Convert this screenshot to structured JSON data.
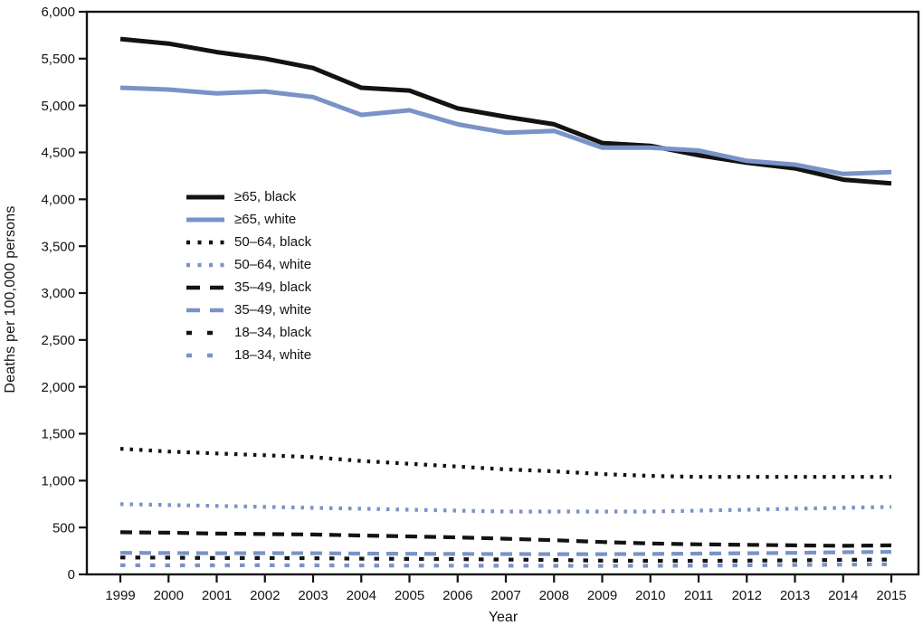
{
  "palette": {
    "black": "#131313",
    "blue": "#7a93c7",
    "frame": "#131313",
    "text": "#131313",
    "background": "#ffffff"
  },
  "chart_data": {
    "type": "line",
    "title": "",
    "xlabel": "Year",
    "ylabel": "Deaths per 100,000 persons",
    "x": [
      1999,
      2000,
      2001,
      2002,
      2003,
      2004,
      2005,
      2006,
      2007,
      2008,
      2009,
      2010,
      2011,
      2012,
      2013,
      2014,
      2015
    ],
    "xtick_labels": [
      "1999",
      "2000",
      "2001",
      "2002",
      "2003",
      "2004",
      "2005",
      "2006",
      "2007",
      "2008",
      "2009",
      "2010",
      "2011",
      "2012",
      "2013",
      "2014",
      "2015"
    ],
    "ylim": [
      0,
      6000
    ],
    "ytick_step": 500,
    "ytick_labels": [
      "0",
      "500",
      "1,000",
      "1,500",
      "2,000",
      "2,500",
      "3,000",
      "3,500",
      "4,000",
      "4,500",
      "5,000",
      "5,500",
      "6,000"
    ],
    "grid": false,
    "legend_position": "inside-upper-left",
    "series": [
      {
        "id": "ge65-black",
        "name": "≥65, black",
        "color": "black",
        "line_style": "solid",
        "values": [
          5710,
          5660,
          5570,
          5500,
          5400,
          5190,
          5160,
          4970,
          4880,
          4800,
          4600,
          4570,
          4470,
          4390,
          4330,
          4210,
          4170
        ]
      },
      {
        "id": "ge65-white",
        "name": "≥65, white",
        "color": "blue",
        "line_style": "solid",
        "values": [
          5190,
          5170,
          5130,
          5150,
          5090,
          4900,
          4950,
          4800,
          4710,
          4730,
          4550,
          4550,
          4520,
          4410,
          4370,
          4270,
          4290
        ]
      },
      {
        "id": "50-64-black",
        "name": "50–64, black",
        "color": "black",
        "line_style": "dotted",
        "values": [
          1340,
          1310,
          1290,
          1270,
          1250,
          1210,
          1180,
          1150,
          1120,
          1100,
          1070,
          1050,
          1040,
          1040,
          1040,
          1040,
          1040
        ]
      },
      {
        "id": "50-64-white",
        "name": "50–64, white",
        "color": "blue",
        "line_style": "dotted",
        "values": [
          750,
          740,
          730,
          720,
          710,
          700,
          690,
          680,
          670,
          670,
          670,
          670,
          680,
          690,
          700,
          710,
          720
        ]
      },
      {
        "id": "35-49-black",
        "name": "35–49, black",
        "color": "black",
        "line_style": "long-dash",
        "values": [
          450,
          445,
          435,
          430,
          425,
          415,
          405,
          395,
          380,
          365,
          345,
          330,
          320,
          315,
          310,
          305,
          310
        ]
      },
      {
        "id": "35-49-white",
        "name": "35–49, white",
        "color": "blue",
        "line_style": "long-dash",
        "values": [
          230,
          228,
          226,
          227,
          226,
          222,
          220,
          218,
          217,
          216,
          216,
          218,
          222,
          226,
          230,
          236,
          240
        ]
      },
      {
        "id": "18-34-black",
        "name": "18–34, black",
        "color": "black",
        "line_style": "short-dash",
        "values": [
          180,
          178,
          175,
          175,
          173,
          168,
          165,
          163,
          158,
          153,
          147,
          145,
          145,
          147,
          150,
          155,
          158
        ]
      },
      {
        "id": "18-34-white",
        "name": "18–34, white",
        "color": "blue",
        "line_style": "short-dash",
        "values": [
          97,
          96,
          96,
          97,
          96,
          95,
          94,
          94,
          93,
          92,
          91,
          92,
          94,
          97,
          100,
          104,
          108
        ]
      }
    ]
  }
}
